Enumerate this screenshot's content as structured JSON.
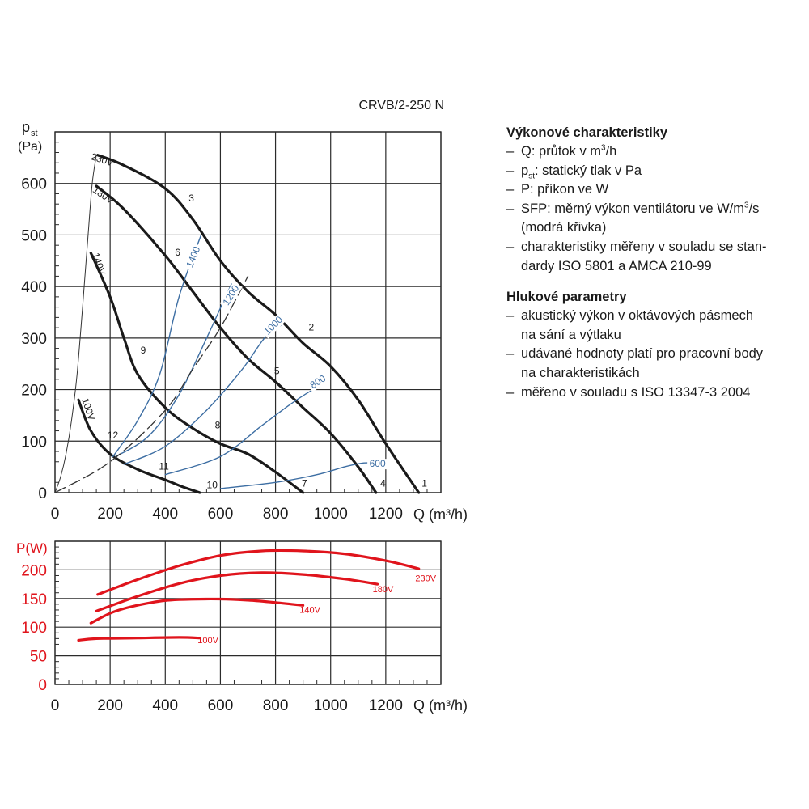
{
  "model_label": "CRVB/2-250 N",
  "colors": {
    "grid": "#2b2b2b",
    "pressure_curves": "#1a1a1a",
    "sfp_curves": "#3d6ea3",
    "system_dash": "#333333",
    "power_curves": "#e0141c",
    "power_axis": "#e0141c"
  },
  "chart_data": [
    {
      "type": "line",
      "xlabel": "Q (m³/h)",
      "ylabel_main": "p",
      "ylabel_sub": "st",
      "ylabel_unit": "(Pa)",
      "xlim": [
        0,
        1400
      ],
      "ylim": [
        0,
        700
      ],
      "x_ticks": [
        "0",
        "200",
        "400",
        "600",
        "800",
        "1000",
        "1200"
      ],
      "y_ticks": [
        "0",
        "100",
        "200",
        "300",
        "400",
        "500",
        "600"
      ],
      "series": [
        {
          "name": "230V",
          "label_id": "3",
          "kind": "fan",
          "x": [
            155,
            250,
            400,
            500,
            600,
            700,
            800,
            900,
            1000,
            1100,
            1200,
            1320
          ],
          "y": [
            655,
            635,
            590,
            530,
            450,
            390,
            345,
            290,
            245,
            180,
            95,
            0
          ]
        },
        {
          "name": "180V",
          "label_id": "6",
          "kind": "fan",
          "x": [
            150,
            250,
            400,
            500,
            600,
            700,
            800,
            900,
            1000,
            1100,
            1165
          ],
          "y": [
            595,
            550,
            460,
            390,
            320,
            260,
            215,
            165,
            115,
            50,
            0
          ]
        },
        {
          "name": "140V",
          "label_id": "9",
          "kind": "fan",
          "x": [
            130,
            200,
            250,
            300,
            400,
            500,
            600,
            700,
            800,
            900
          ],
          "y": [
            465,
            380,
            300,
            230,
            165,
            125,
            95,
            75,
            40,
            0
          ]
        },
        {
          "name": "100V",
          "label_id": "12",
          "kind": "fan",
          "x": [
            85,
            130,
            200,
            300,
            400,
            460,
            525
          ],
          "y": [
            180,
            120,
            75,
            45,
            25,
            12,
            0
          ]
        },
        {
          "name": "1400",
          "kind": "sfp",
          "x": [
            210,
            300,
            380,
            450,
            530
          ],
          "y": [
            70,
            140,
            230,
            380,
            500
          ]
        },
        {
          "name": "1200",
          "kind": "sfp",
          "x": [
            220,
            340,
            450,
            550,
            610,
            640
          ],
          "y": [
            70,
            110,
            190,
            300,
            370,
            405
          ]
        },
        {
          "name": "1000",
          "kind": "sfp",
          "x": [
            250,
            400,
            550,
            680,
            760,
            820
          ],
          "y": [
            55,
            90,
            160,
            240,
            300,
            325
          ]
        },
        {
          "name": "800",
          "kind": "sfp",
          "x": [
            400,
            600,
            750,
            850,
            920,
            960
          ],
          "y": [
            35,
            70,
            130,
            170,
            195,
            205
          ]
        },
        {
          "name": "600",
          "kind": "sfp",
          "x": [
            600,
            800,
            950,
            1050,
            1110,
            1140
          ],
          "y": [
            8,
            20,
            35,
            50,
            57,
            58
          ]
        },
        {
          "name": "system",
          "kind": "system",
          "x": [
            0,
            200,
            400,
            500,
            600,
            700
          ],
          "y": [
            0,
            60,
            160,
            240,
            320,
            420
          ]
        },
        {
          "name": "startup",
          "kind": "startup",
          "x": [
            0,
            20,
            40,
            60,
            80,
            100,
            120,
            135,
            150
          ],
          "y": [
            0,
            30,
            75,
            140,
            230,
            360,
            500,
            600,
            655
          ]
        }
      ],
      "curve_labels": [
        {
          "text": "230V",
          "x": 168,
          "y": 640,
          "rot": 18
        },
        {
          "text": "180V",
          "x": 168,
          "y": 572,
          "rot": 35
        },
        {
          "text": "140V",
          "x": 148,
          "y": 442,
          "rot": 72
        },
        {
          "text": "100V",
          "x": 110,
          "y": 160,
          "rot": 72
        },
        {
          "text": "1400",
          "x": 512,
          "y": 455,
          "rot": -68
        },
        {
          "text": "1200",
          "x": 648,
          "y": 380,
          "rot": -58
        },
        {
          "text": "1000",
          "x": 800,
          "y": 320,
          "rot": -45
        },
        {
          "text": "800",
          "x": 960,
          "y": 210,
          "rot": -33
        },
        {
          "text": "600",
          "x": 1170,
          "y": 50,
          "rot": 0
        }
      ],
      "point_labels": [
        {
          "text": "1",
          "x": 1340,
          "y": 12
        },
        {
          "text": "2",
          "x": 930,
          "y": 315
        },
        {
          "text": "3",
          "x": 495,
          "y": 565
        },
        {
          "text": "4",
          "x": 1190,
          "y": 12
        },
        {
          "text": "5",
          "x": 805,
          "y": 230
        },
        {
          "text": "6",
          "x": 445,
          "y": 460
        },
        {
          "text": "7",
          "x": 905,
          "y": 12
        },
        {
          "text": "8",
          "x": 590,
          "y": 125
        },
        {
          "text": "9",
          "x": 320,
          "y": 270
        },
        {
          "text": "10",
          "x": 570,
          "y": 9
        },
        {
          "text": "11",
          "x": 395,
          "y": 45
        },
        {
          "text": "12",
          "x": 210,
          "y": 105
        }
      ]
    },
    {
      "type": "line",
      "xlabel": "Q (m³/h)",
      "ylabel_main": "P",
      "ylabel_unit": "(W)",
      "xlim": [
        0,
        1400
      ],
      "ylim": [
        0,
        250
      ],
      "x_ticks": [
        "0",
        "200",
        "400",
        "600",
        "800",
        "1000",
        "1200"
      ],
      "y_ticks": [
        "0",
        "50",
        "100",
        "150",
        "200"
      ],
      "series": [
        {
          "name": "230V",
          "x": [
            155,
            300,
            450,
            600,
            750,
            900,
            1050,
            1200,
            1320
          ],
          "y": [
            157,
            183,
            207,
            225,
            233,
            233,
            228,
            216,
            202
          ]
        },
        {
          "name": "180V",
          "x": [
            150,
            300,
            450,
            600,
            750,
            900,
            1050,
            1170
          ],
          "y": [
            128,
            154,
            176,
            190,
            195,
            192,
            184,
            175
          ]
        },
        {
          "name": "140V",
          "x": [
            130,
            220,
            350,
            450,
            600,
            700,
            800,
            900
          ],
          "y": [
            107,
            128,
            143,
            148,
            149,
            147,
            143,
            138
          ]
        },
        {
          "name": "100V",
          "x": [
            85,
            150,
            300,
            450,
            525
          ],
          "y": [
            77,
            80,
            81,
            82,
            81
          ]
        }
      ],
      "curve_labels": [
        {
          "text": "230V",
          "x": 1345,
          "y": 180
        },
        {
          "text": "180V",
          "x": 1190,
          "y": 161
        },
        {
          "text": "140V",
          "x": 925,
          "y": 125
        },
        {
          "text": "100V",
          "x": 555,
          "y": 72
        }
      ]
    }
  ],
  "sidebar": {
    "perf_heading": "Výkonové charakteristiky",
    "perf_q_main": "Q: průtok v m",
    "perf_q_sup": "3",
    "perf_q_tail": "/h",
    "perf_pst_main": "p",
    "perf_pst_sub": "st",
    "perf_pst_tail": ": statický tlak v Pa",
    "perf_p": "P: příkon ve W",
    "perf_sfp_main": "SFP: měrný výkon ventilátoru ve W/m",
    "perf_sfp_sup": "3",
    "perf_sfp_tail": "/s",
    "perf_sfp_note": "(modrá křivka)",
    "perf_std_1": "charakteristiky měřeny v souladu se stan-",
    "perf_std_2": "dardy ISO 5801 a AMCA 210-99",
    "noise_heading": "Hlukové parametry",
    "noise_1a": "akustický výkon v oktávových pásmech",
    "noise_1b": "na sání a výtlaku",
    "noise_2a": "udávané hodnoty platí pro pracovní body",
    "noise_2b": "na charakteristikách",
    "noise_3": "měřeno v souladu s ISO 13347-3 2004"
  }
}
